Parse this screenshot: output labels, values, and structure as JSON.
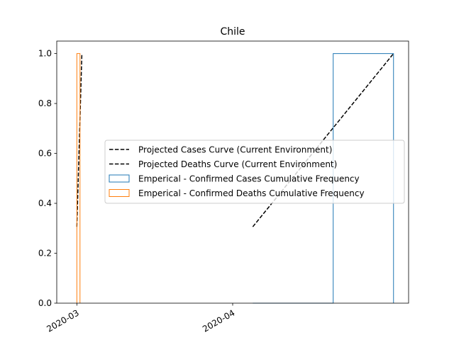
{
  "chart_data": {
    "type": "line",
    "title": "Chile",
    "xlabel": "",
    "ylabel": "",
    "x_is_date": true,
    "xlim": [
      "2020-02-26",
      "2020-05-06"
    ],
    "ylim": [
      0,
      1.05
    ],
    "x_ticks": [
      {
        "value": "2020-03-01",
        "label": "2020-03"
      },
      {
        "value": "2020-04-01",
        "label": "2020-04"
      }
    ],
    "y_ticks": [
      {
        "value": 0.0,
        "label": "0.0"
      },
      {
        "value": 0.2,
        "label": "0.2"
      },
      {
        "value": 0.4,
        "label": "0.4"
      },
      {
        "value": 0.6,
        "label": "0.6"
      },
      {
        "value": 0.8,
        "label": "0.8"
      },
      {
        "value": 1.0,
        "label": "1.0"
      }
    ],
    "grid": false,
    "legend_position": "center-right",
    "series": [
      {
        "name": "Projected Cases Curve (Current Environment)",
        "style": "dashed-line",
        "color": "#000000",
        "x": [
          "2020-04-05",
          "2020-05-03"
        ],
        "y": [
          0.306,
          1.0
        ]
      },
      {
        "name": "Projected Deaths Curve (Current Environment)",
        "style": "dashed-line",
        "color": "#000000",
        "x": [
          "2020-03-01",
          "2020-03-02"
        ],
        "y": [
          0.306,
          1.0
        ]
      },
      {
        "name": "Emperical - Confirmed Cases Cumulative Frequency",
        "style": "step-histogram",
        "color": "#1f77b4",
        "bins": [
          {
            "start": "2020-04-05",
            "end": "2020-04-21",
            "value": 0.0
          },
          {
            "start": "2020-04-21",
            "end": "2020-05-03",
            "value": 1.0
          }
        ]
      },
      {
        "name": "Emperical - Confirmed Deaths Cumulative Frequency",
        "style": "step-histogram",
        "color": "#ff7f0e",
        "bins": [
          {
            "start": "2020-03-01",
            "end": "2020-03-01T15:00",
            "value": 1.0
          }
        ]
      }
    ]
  }
}
